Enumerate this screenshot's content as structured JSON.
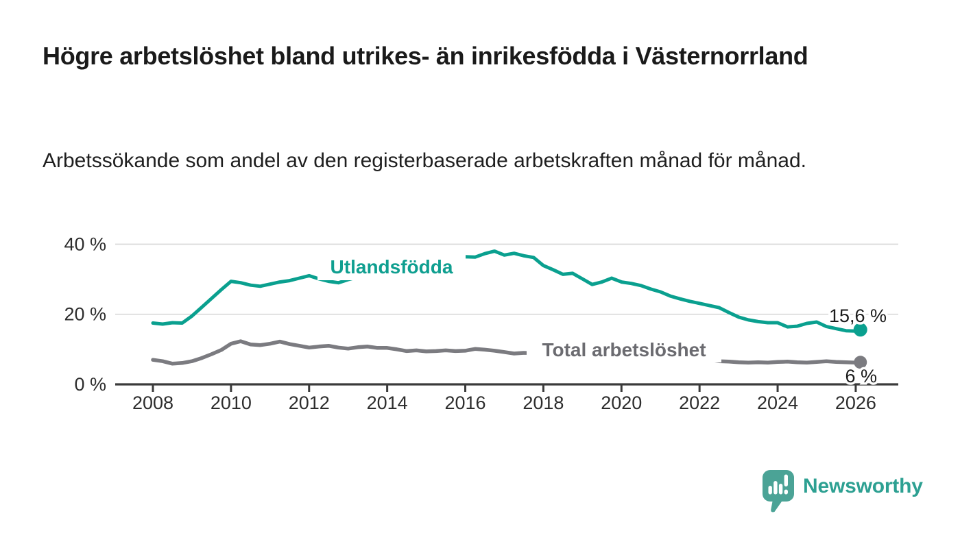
{
  "header": {
    "title": "Högre arbetslöshet bland utrikes- än inrikesfödda i Västernorrland",
    "subtitle": "Arbetssökande som andel av den registerbaserade arbetskraften månad för månad."
  },
  "branding": {
    "logo_text": "Newsworthy",
    "logo_text_color": "#2da092",
    "logo_bubble_color": "#4ba396",
    "logo_icon": "bar-chart-speech-bubble-icon"
  },
  "chart_data": {
    "type": "line",
    "title": "Högre arbetslöshet bland utrikes- än inrikesfödda i Västernorrland",
    "subtitle": "Arbetssökande som andel av den registerbaserade arbetskraften månad för månad.",
    "unit": "%",
    "grid": "horizontal",
    "colors": {
      "grid_line": "#d8d8d8",
      "axis_line": "#3b3b3b",
      "axis_text": "#2d2d2d",
      "value_label_text": "#1b1b1b"
    },
    "x_axis": {
      "tick_values": [
        2008,
        2010,
        2012,
        2014,
        2016,
        2018,
        2020,
        2022,
        2024,
        2026
      ],
      "tick_labels": [
        "2008",
        "2010",
        "2012",
        "2014",
        "2016",
        "2018",
        "2020",
        "2022",
        "2024",
        "2026"
      ],
      "range": [
        2007.0,
        2027.1
      ]
    },
    "y_axis": {
      "tick_values": [
        0,
        20,
        40
      ],
      "tick_labels": [
        "0 %",
        "20 %",
        "40 %"
      ],
      "range": [
        0,
        43
      ]
    },
    "series": [
      {
        "name": "Utlandsfödda",
        "color": "#0aa08f",
        "label_color": "#0f9f90",
        "end_label": "15,6 %",
        "end_value": 15.6,
        "points": [
          [
            2008,
            17.5
          ],
          [
            2008.25,
            17.2
          ],
          [
            2008.5,
            17.6
          ],
          [
            2008.75,
            17.5
          ],
          [
            2009,
            19.5
          ],
          [
            2009.25,
            22
          ],
          [
            2009.5,
            24.5
          ],
          [
            2009.75,
            27
          ],
          [
            2010,
            29.4
          ],
          [
            2010.25,
            29
          ],
          [
            2010.5,
            28.3
          ],
          [
            2010.75,
            28
          ],
          [
            2011,
            28.6
          ],
          [
            2011.25,
            29.2
          ],
          [
            2011.5,
            29.6
          ],
          [
            2011.75,
            30.3
          ],
          [
            2012,
            31
          ],
          [
            2012.25,
            30.1
          ],
          [
            2012.5,
            29.4
          ],
          [
            2012.75,
            29
          ],
          [
            2013,
            29.9
          ],
          [
            2013.25,
            30.6
          ],
          [
            2013.5,
            31.3
          ],
          [
            2013.75,
            32.1
          ],
          [
            2014,
            32.8
          ],
          [
            2014.25,
            33.4
          ],
          [
            2014.5,
            33.9
          ],
          [
            2014.75,
            34.1
          ],
          [
            2015,
            34.5
          ],
          [
            2015.25,
            35.1
          ],
          [
            2015.5,
            36
          ],
          [
            2015.75,
            35.5
          ],
          [
            2016,
            36.4
          ],
          [
            2016.25,
            36.3
          ],
          [
            2016.5,
            37.3
          ],
          [
            2016.75,
            38
          ],
          [
            2017,
            36.9
          ],
          [
            2017.25,
            37.4
          ],
          [
            2017.5,
            36.7
          ],
          [
            2017.75,
            36.2
          ],
          [
            2018,
            33.9
          ],
          [
            2018.25,
            32.7
          ],
          [
            2018.5,
            31.4
          ],
          [
            2018.75,
            31.7
          ],
          [
            2019,
            30.1
          ],
          [
            2019.25,
            28.5
          ],
          [
            2019.5,
            29.2
          ],
          [
            2019.75,
            30.3
          ],
          [
            2020,
            29.2
          ],
          [
            2020.25,
            28.8
          ],
          [
            2020.5,
            28.2
          ],
          [
            2020.75,
            27.2
          ],
          [
            2021,
            26.4
          ],
          [
            2021.25,
            25.2
          ],
          [
            2021.5,
            24.4
          ],
          [
            2021.75,
            23.7
          ],
          [
            2022,
            23.1
          ],
          [
            2022.25,
            22.5
          ],
          [
            2022.5,
            21.9
          ],
          [
            2022.75,
            20.5
          ],
          [
            2023,
            19.2
          ],
          [
            2023.25,
            18.4
          ],
          [
            2023.5,
            17.9
          ],
          [
            2023.75,
            17.6
          ],
          [
            2024,
            17.6
          ],
          [
            2024.25,
            16.4
          ],
          [
            2024.5,
            16.6
          ],
          [
            2024.75,
            17.4
          ],
          [
            2025,
            17.8
          ],
          [
            2025.25,
            16.5
          ],
          [
            2025.5,
            15.9
          ],
          [
            2025.75,
            15.3
          ],
          [
            2026,
            15.2
          ],
          [
            2026.12,
            15.6
          ]
        ]
      },
      {
        "name": "Total arbetslöshet",
        "color": "#7b7b80",
        "label_color": "#6b6b70",
        "end_label": "6 %",
        "end_value": 6.3,
        "points": [
          [
            2008,
            7
          ],
          [
            2008.25,
            6.6
          ],
          [
            2008.5,
            5.9
          ],
          [
            2008.75,
            6.1
          ],
          [
            2009,
            6.6
          ],
          [
            2009.25,
            7.5
          ],
          [
            2009.5,
            8.6
          ],
          [
            2009.75,
            9.8
          ],
          [
            2010,
            11.6
          ],
          [
            2010.25,
            12.3
          ],
          [
            2010.5,
            11.4
          ],
          [
            2010.75,
            11.2
          ],
          [
            2011,
            11.6
          ],
          [
            2011.25,
            12.2
          ],
          [
            2011.5,
            11.5
          ],
          [
            2011.75,
            11
          ],
          [
            2012,
            10.5
          ],
          [
            2012.25,
            10.8
          ],
          [
            2012.5,
            11
          ],
          [
            2012.75,
            10.5
          ],
          [
            2013,
            10.2
          ],
          [
            2013.25,
            10.6
          ],
          [
            2013.5,
            10.8
          ],
          [
            2013.75,
            10.4
          ],
          [
            2014,
            10.4
          ],
          [
            2014.25,
            10
          ],
          [
            2014.5,
            9.5
          ],
          [
            2014.75,
            9.7
          ],
          [
            2015,
            9.4
          ],
          [
            2015.25,
            9.5
          ],
          [
            2015.5,
            9.7
          ],
          [
            2015.75,
            9.5
          ],
          [
            2016,
            9.6
          ],
          [
            2016.25,
            10.1
          ],
          [
            2016.5,
            9.9
          ],
          [
            2016.75,
            9.6
          ],
          [
            2017,
            9.2
          ],
          [
            2017.25,
            8.8
          ],
          [
            2017.5,
            9
          ],
          [
            2017.75,
            8.9
          ],
          [
            2018,
            8.8
          ],
          [
            2018.25,
            8.6
          ],
          [
            2018.5,
            8.4
          ],
          [
            2018.75,
            8.3
          ],
          [
            2019,
            8.2
          ],
          [
            2019.25,
            8.1
          ],
          [
            2019.5,
            8
          ],
          [
            2019.75,
            8.2
          ],
          [
            2020,
            8.6
          ],
          [
            2020.25,
            9.2
          ],
          [
            2020.5,
            9.5
          ],
          [
            2020.75,
            9.3
          ],
          [
            2021,
            9
          ],
          [
            2021.25,
            8.6
          ],
          [
            2021.5,
            8.2
          ],
          [
            2021.75,
            7.8
          ],
          [
            2022,
            7.4
          ],
          [
            2022.25,
            7
          ],
          [
            2022.5,
            6.6
          ],
          [
            2022.75,
            6.5
          ],
          [
            2023,
            6.3
          ],
          [
            2023.25,
            6.2
          ],
          [
            2023.5,
            6.3
          ],
          [
            2023.75,
            6.2
          ],
          [
            2024,
            6.4
          ],
          [
            2024.25,
            6.5
          ],
          [
            2024.5,
            6.3
          ],
          [
            2024.75,
            6.2
          ],
          [
            2025,
            6.4
          ],
          [
            2025.25,
            6.6
          ],
          [
            2025.5,
            6.4
          ],
          [
            2025.75,
            6.3
          ],
          [
            2026,
            6.2
          ],
          [
            2026.12,
            6.3
          ]
        ]
      }
    ]
  }
}
